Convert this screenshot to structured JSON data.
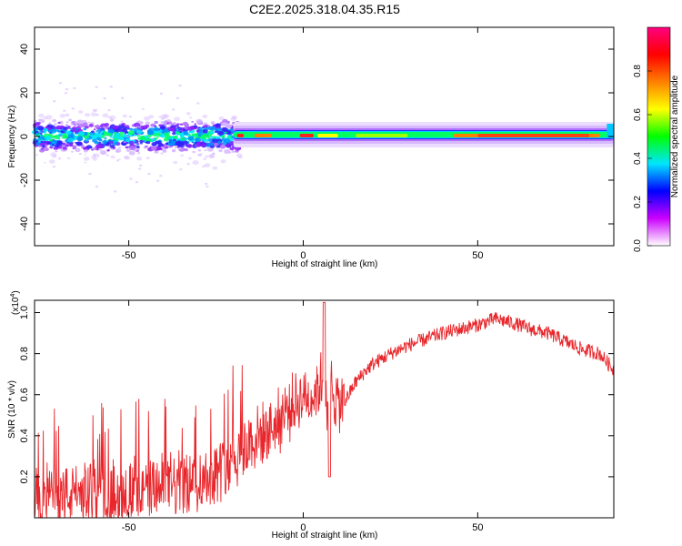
{
  "title": "C2E2.2025.318.04.35.R15",
  "chart_data": [
    {
      "type": "heatmap",
      "name": "spectrogram",
      "xlabel": "Height of straight line (km)",
      "ylabel": "Frequency (Hz)",
      "xlim": [
        -77,
        89
      ],
      "ylim": [
        -50,
        50
      ],
      "xticks": [
        -50,
        0,
        50
      ],
      "yticks": [
        -40,
        -20,
        0,
        20,
        40
      ],
      "grid": false,
      "colorbar": {
        "label": "Normalized spectral amplitude",
        "range": [
          0,
          1
        ],
        "ticks": [
          0.0,
          0.2,
          0.4,
          0.6,
          0.8
        ],
        "tick_labels": [
          "0.0",
          "0.2",
          "0.4",
          "0.6",
          "0.8"
        ],
        "colors": [
          "#ffffff",
          "#cc00ff",
          "#0000ff",
          "#00e5ff",
          "#00ff00",
          "#ffff00",
          "#ff8000",
          "#ff0000",
          "#ff0080"
        ]
      }
    },
    {
      "type": "line",
      "name": "snr",
      "xlabel": "Height of straight line (km)",
      "ylabel": "SNR (10 * v/v)",
      "yscale_label": "(x10",
      "yscale_exp": "4",
      "xlim": [
        -77,
        89
      ],
      "ylim": [
        0,
        1.06
      ],
      "xticks": [
        -50,
        0,
        50
      ],
      "yticks": [
        0.2,
        0.4,
        0.6,
        0.8,
        1.0
      ],
      "ytick_labels": [
        "0.2",
        "0.4",
        "0.6",
        "0.8",
        "1.0"
      ],
      "color": "#e8262b",
      "x": [
        -77,
        -70,
        -60,
        -50,
        -40,
        -30,
        -25,
        -20,
        -15,
        -10,
        -7,
        -5,
        -2,
        0,
        2,
        4,
        5,
        6,
        7,
        8,
        10,
        12,
        15,
        18,
        20,
        25,
        30,
        35,
        40,
        45,
        50,
        55,
        60,
        65,
        70,
        75,
        80,
        85,
        89
      ],
      "values": [
        0.1,
        0.11,
        0.12,
        0.13,
        0.15,
        0.18,
        0.22,
        0.3,
        0.37,
        0.43,
        0.47,
        0.52,
        0.56,
        0.6,
        0.58,
        0.63,
        0.66,
        0.7,
        0.42,
        0.66,
        0.55,
        0.57,
        0.66,
        0.72,
        0.75,
        0.8,
        0.84,
        0.87,
        0.9,
        0.92,
        0.94,
        0.97,
        0.95,
        0.92,
        0.9,
        0.86,
        0.82,
        0.8,
        0.72
      ]
    }
  ]
}
